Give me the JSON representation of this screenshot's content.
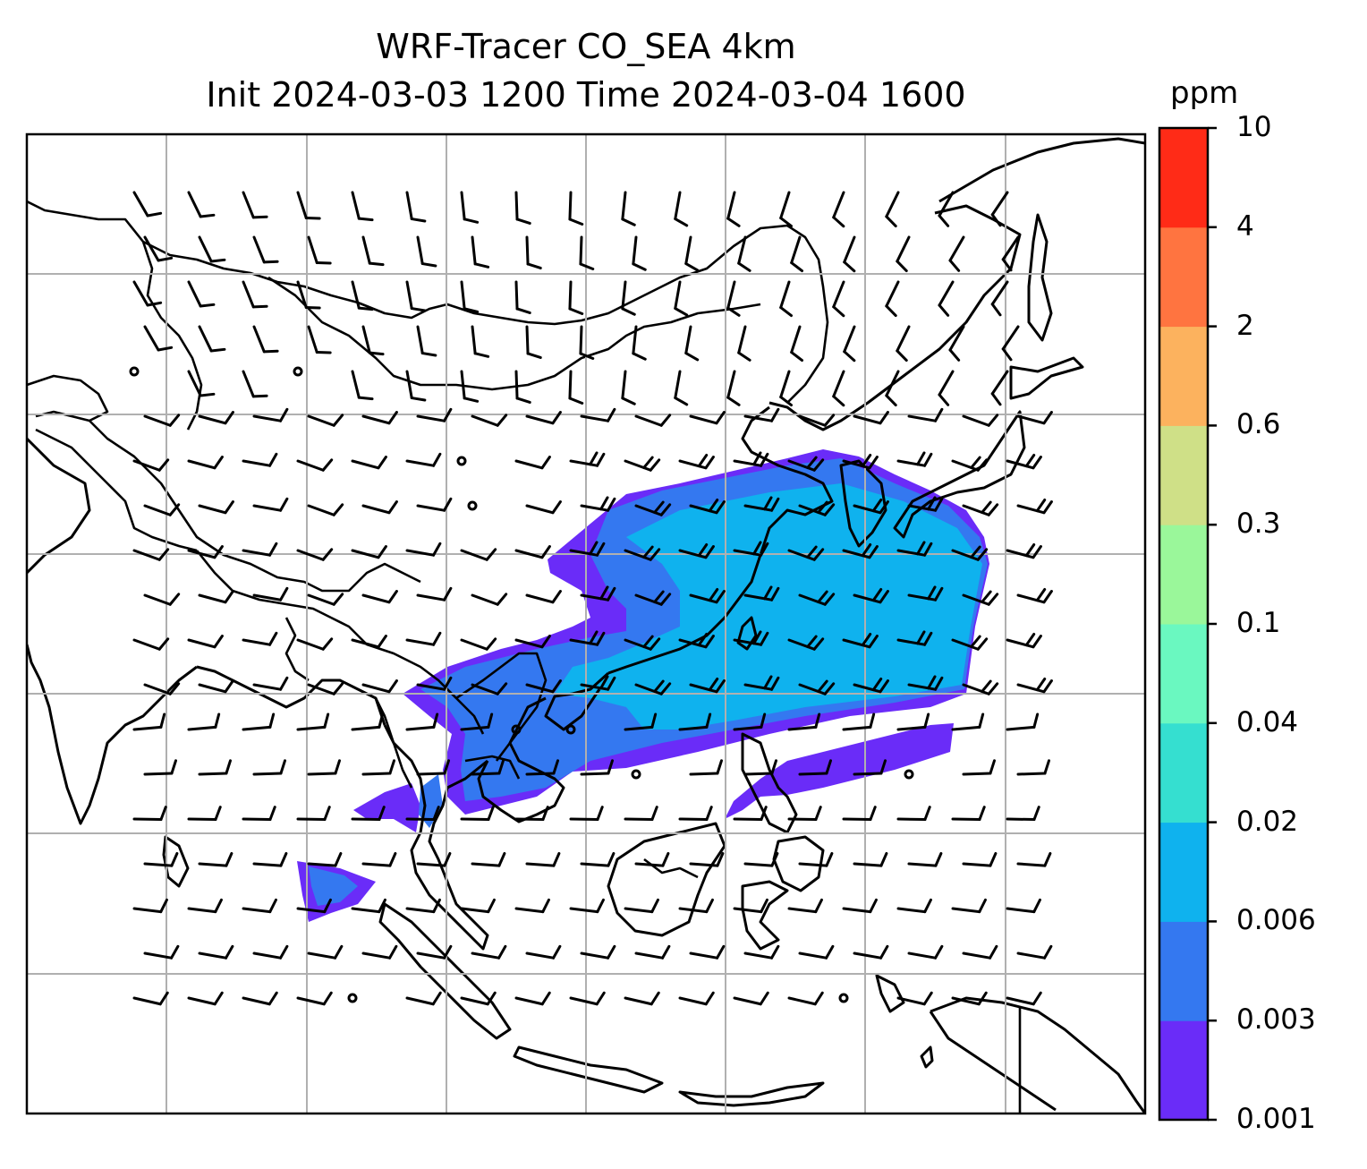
{
  "title": {
    "line1": "WRF-Tracer CO_SEA 4km",
    "line2": "Init 2024-03-03 1200 Time 2024-03-04 1600"
  },
  "colorbar": {
    "unit": "ppm",
    "levels": [
      "0.001",
      "0.003",
      "0.006",
      "0.02",
      "0.04",
      "0.1",
      "0.3",
      "0.6",
      "2",
      "4",
      "10"
    ],
    "colors": [
      "#6a2cf8",
      "#3478f0",
      "#0fb2ee",
      "#35dfd0",
      "#6af8c0",
      "#9af79a",
      "#cfe087",
      "#fcb25e",
      "#ff7440",
      "#ff2b17"
    ]
  },
  "map": {
    "shaded_field": "CO tracer concentration",
    "overlay": "wind barbs",
    "gridlines": true
  }
}
